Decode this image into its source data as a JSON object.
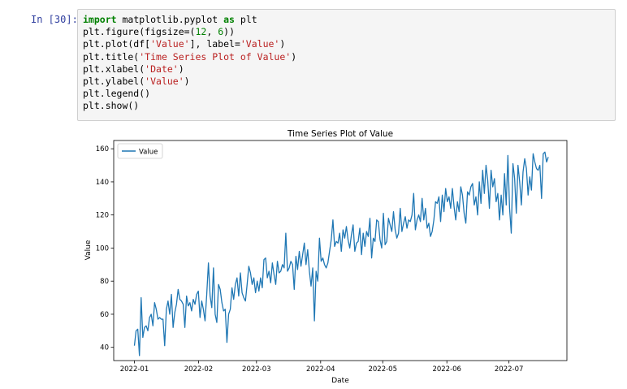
{
  "cell": {
    "prompt": "In [30]:",
    "code_lines": [
      [
        {
          "t": "import",
          "c": "kw"
        },
        {
          "t": " matplotlib.pyplot "
        },
        {
          "t": "as",
          "c": "kw"
        },
        {
          "t": " plt"
        }
      ],
      [
        {
          "t": "plt.figure(figsize=("
        },
        {
          "t": "12",
          "c": "num"
        },
        {
          "t": ", "
        },
        {
          "t": "6",
          "c": "num"
        },
        {
          "t": "))"
        }
      ],
      [
        {
          "t": "plt.plot(df["
        },
        {
          "t": "'Value'",
          "c": "str"
        },
        {
          "t": "], label="
        },
        {
          "t": "'Value'",
          "c": "str"
        },
        {
          "t": ")"
        }
      ],
      [
        {
          "t": "plt.title("
        },
        {
          "t": "'Time Series Plot of Value'",
          "c": "str"
        },
        {
          "t": ")"
        }
      ],
      [
        {
          "t": "plt.xlabel("
        },
        {
          "t": "'Date'",
          "c": "str"
        },
        {
          "t": ")"
        }
      ],
      [
        {
          "t": "plt.ylabel("
        },
        {
          "t": "'Value'",
          "c": "str"
        },
        {
          "t": ")"
        }
      ],
      [
        {
          "t": "plt.legend()"
        }
      ],
      [
        {
          "t": "plt.show()"
        }
      ]
    ]
  },
  "colors": {
    "line": "#1f77b4",
    "prompt": "#303f9f",
    "keyword": "#008000",
    "string": "#ba2121"
  },
  "chart_data": {
    "type": "line",
    "title": "Time Series Plot of Value",
    "xlabel": "Date",
    "ylabel": "Value",
    "legend_placement": "upper-left",
    "grid": false,
    "x_start": "2022-01-01",
    "x_end": "2022-07-20",
    "xlim": [
      "2021-12-22",
      "2022-07-29"
    ],
    "ylim": [
      32,
      165
    ],
    "x_ticks": [
      "2022-01",
      "2022-02",
      "2022-03",
      "2022-04",
      "2022-05",
      "2022-06",
      "2022-07"
    ],
    "y_ticks": [
      40,
      60,
      80,
      100,
      120,
      140,
      160
    ],
    "series": [
      {
        "name": "Value",
        "values": [
          41,
          50,
          51,
          35,
          70,
          46,
          52,
          53,
          50,
          58,
          60,
          53,
          67,
          63,
          57,
          58,
          57,
          57,
          41,
          63,
          68,
          60,
          72,
          52,
          61,
          66,
          75,
          69,
          68,
          66,
          52,
          71,
          65,
          67,
          62,
          69,
          66,
          72,
          74,
          58,
          68,
          63,
          56,
          72,
          91,
          71,
          64,
          88,
          60,
          55,
          78,
          75,
          67,
          62,
          63,
          43,
          60,
          63,
          76,
          69,
          78,
          82,
          71,
          85,
          73,
          70,
          68,
          78,
          89,
          85,
          78,
          82,
          73,
          80,
          74,
          82,
          76,
          93,
          94,
          82,
          86,
          79,
          91,
          84,
          78,
          92,
          85,
          86,
          90,
          88,
          109,
          86,
          88,
          92,
          90,
          75,
          95,
          87,
          98,
          89,
          96,
          103,
          90,
          99,
          86,
          77,
          88,
          56,
          86,
          80,
          106,
          92,
          94,
          90,
          88,
          91,
          98,
          105,
          117,
          101,
          104,
          103,
          109,
          98,
          111,
          106,
          113,
          105,
          100,
          108,
          114,
          98,
          103,
          104,
          112,
          96,
          109,
          101,
          110,
          107,
          118,
          94,
          106,
          104,
          117,
          116,
          105,
          100,
          121,
          102,
          104,
          118,
          114,
          110,
          122,
          111,
          106,
          109,
          124,
          110,
          115,
          119,
          112,
          117,
          116,
          120,
          133,
          111,
          117,
          120,
          116,
          130,
          117,
          124,
          112,
          115,
          107,
          110,
          117,
          128,
          127,
          131,
          116,
          132,
          122,
          136,
          128,
          131,
          124,
          136,
          125,
          117,
          128,
          122,
          137,
          132,
          121,
          115,
          134,
          132,
          137,
          139,
          126,
          131,
          120,
          140,
          127,
          147,
          133,
          150,
          141,
          124,
          147,
          137,
          142,
          128,
          133,
          117,
          132,
          120,
          145,
          126,
          156,
          124,
          109,
          151,
          142,
          121,
          150,
          140,
          126,
          146,
          154,
          148,
          132,
          143,
          135,
          157,
          152,
          148,
          147,
          150,
          130,
          157,
          158,
          152,
          155
        ]
      }
    ]
  }
}
